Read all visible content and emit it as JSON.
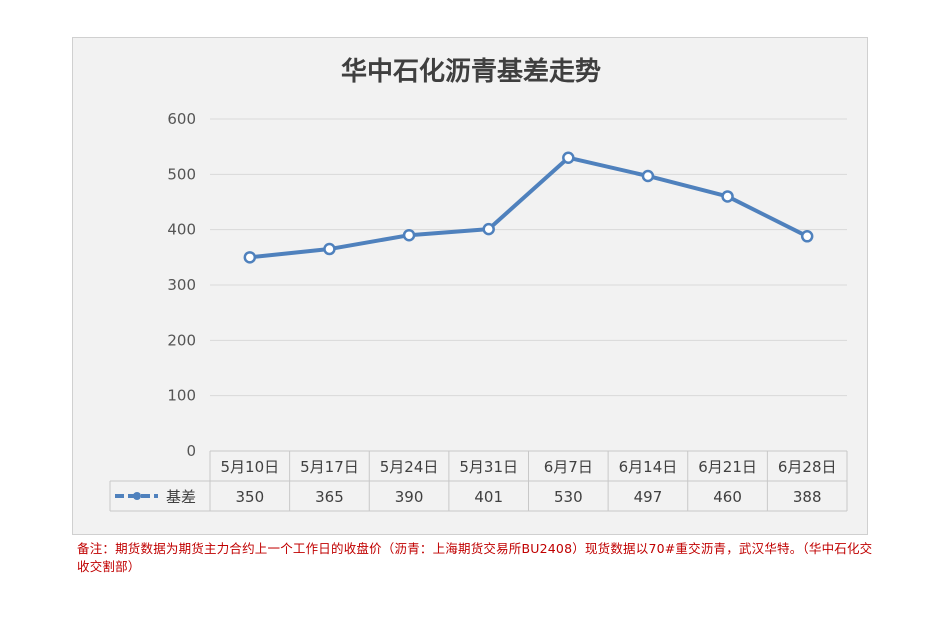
{
  "chart_data": {
    "type": "line",
    "title": "华中石化沥青基差走势",
    "categories": [
      "5月10日",
      "5月17日",
      "5月24日",
      "5月31日",
      "6月7日",
      "6月14日",
      "6月21日",
      "6月28日"
    ],
    "series": [
      {
        "name": "基差",
        "values": [
          350,
          365,
          390,
          401,
          530,
          497,
          460,
          388
        ],
        "color": "#4f81bd"
      }
    ],
    "ylim": [
      0,
      600
    ],
    "yticks": [
      0,
      100,
      200,
      300,
      400,
      500,
      600
    ],
    "grid": true,
    "legend": "data-table-left",
    "data_table": true
  },
  "note": "备注：期货数据为期货主力合约上一个工作日的收盘价（沥青：上海期货交易所BU2408）现货数据以70#重交沥青，武汉华特。（华中石化交收交割部）"
}
